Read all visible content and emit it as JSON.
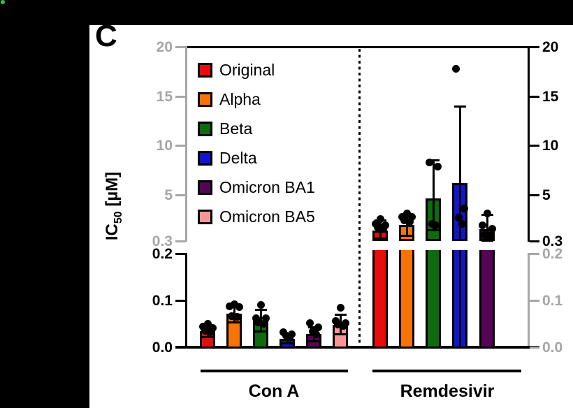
{
  "figure": {
    "panel_letter": "C",
    "y_axis_label": {
      "base": "IC",
      "sub": "50",
      "unit": " [µM]"
    },
    "colors": {
      "axis_gray": "#A6A6A6",
      "axis_black": "#000000",
      "indicator_green": "#2FC82F"
    }
  },
  "legend": {
    "items": [
      {
        "label": "Original",
        "color": "#E80D0D"
      },
      {
        "label": "Alpha",
        "color": "#F87306"
      },
      {
        "label": "Beta",
        "color": "#0E6B0E"
      },
      {
        "label": "Delta",
        "color": "#1414CD"
      },
      {
        "label": "Omicron BA1",
        "color": "#550555"
      },
      {
        "label": "Omicron BA5",
        "color": "#F89696"
      }
    ]
  },
  "chart_data": {
    "type": "bar",
    "title": "",
    "ylabel": "IC50 [µM]",
    "axis_break": true,
    "top_axis": {
      "range": [
        0.3,
        20
      ],
      "tick_labels": [
        "20",
        "15",
        "10",
        "5",
        "0.3"
      ],
      "tick_values": [
        20,
        15,
        10,
        5,
        0.3
      ],
      "left_label_color": "#A6A6A6",
      "right_label_color": "#000000"
    },
    "bottom_axis": {
      "range": [
        0,
        0.2
      ],
      "tick_labels": [
        "0.2",
        "0.1",
        "0.0"
      ],
      "tick_values": [
        0.2,
        0.1,
        0.0
      ],
      "left_label_color": "#000000",
      "right_label_color": "#A6A6A6"
    },
    "groups": [
      {
        "label": "Con A",
        "bars": [
          {
            "variant": "Original",
            "color": "#E80D0D",
            "mean": 0.034,
            "err_lo": 0.022,
            "err_hi": 0.047,
            "points": [
              0.051,
              0.045,
              0.042,
              0.036,
              0.033
            ]
          },
          {
            "variant": "Alpha",
            "color": "#F87306",
            "mean": 0.072,
            "err_lo": 0.054,
            "err_hi": 0.091,
            "points": [
              0.092,
              0.088,
              0.087,
              0.067,
              0.066
            ]
          },
          {
            "variant": "Beta",
            "color": "#0E6B0E",
            "mean": 0.056,
            "err_lo": 0.035,
            "err_hi": 0.08,
            "points": [
              0.091,
              0.063,
              0.062,
              0.053,
              0.051
            ]
          },
          {
            "variant": "Delta",
            "color": "#1414CD",
            "mean": 0.018,
            "err_lo": 0.009,
            "err_hi": 0.027,
            "points": [
              0.033,
              0.028,
              0.026,
              0.021
            ]
          },
          {
            "variant": "Omicron BA1",
            "color": "#550555",
            "mean": 0.028,
            "err_lo": 0.014,
            "err_hi": 0.043,
            "points": [
              0.052,
              0.043,
              0.034,
              0.029
            ]
          },
          {
            "variant": "Omicron BA5",
            "color": "#F89696",
            "mean": 0.048,
            "err_lo": 0.028,
            "err_hi": 0.07,
            "points": [
              0.085,
              0.056,
              0.052,
              0.05,
              0.047
            ]
          }
        ]
      },
      {
        "label": "Remdesivir",
        "bars": [
          {
            "variant": "Original",
            "color": "#E80D0D",
            "mean": 1.35,
            "err_lo": 0.6,
            "err_hi": 2.4,
            "points": [
              2.6,
              2.1,
              1.9,
              1.7,
              1.6
            ]
          },
          {
            "variant": "Alpha",
            "color": "#F87306",
            "mean": 1.9,
            "err_lo": 0.9,
            "err_hi": 2.9,
            "points": [
              3.1,
              2.8,
              2.8,
              2.4,
              2.3
            ]
          },
          {
            "variant": "Beta",
            "color": "#0E6B0E",
            "mean": 4.6,
            "err_lo": 1.4,
            "err_hi": 8.5,
            "points": [
              8.3,
              7.9,
              2.1,
              1.9
            ]
          },
          {
            "variant": "Delta",
            "color": "#1414CD",
            "mean": 6.2,
            "err_lo": -1.6,
            "err_hi": 14.0,
            "points": [
              17.8,
              3.6,
              2.7,
              2.1
            ]
          },
          {
            "variant": "Omicron BA1",
            "color": "#550555",
            "mean": 1.5,
            "err_lo": 0.4,
            "err_hi": 3.0,
            "points": [
              3.1,
              1.9,
              1.6,
              0.95,
              0.85
            ]
          }
        ]
      }
    ]
  }
}
